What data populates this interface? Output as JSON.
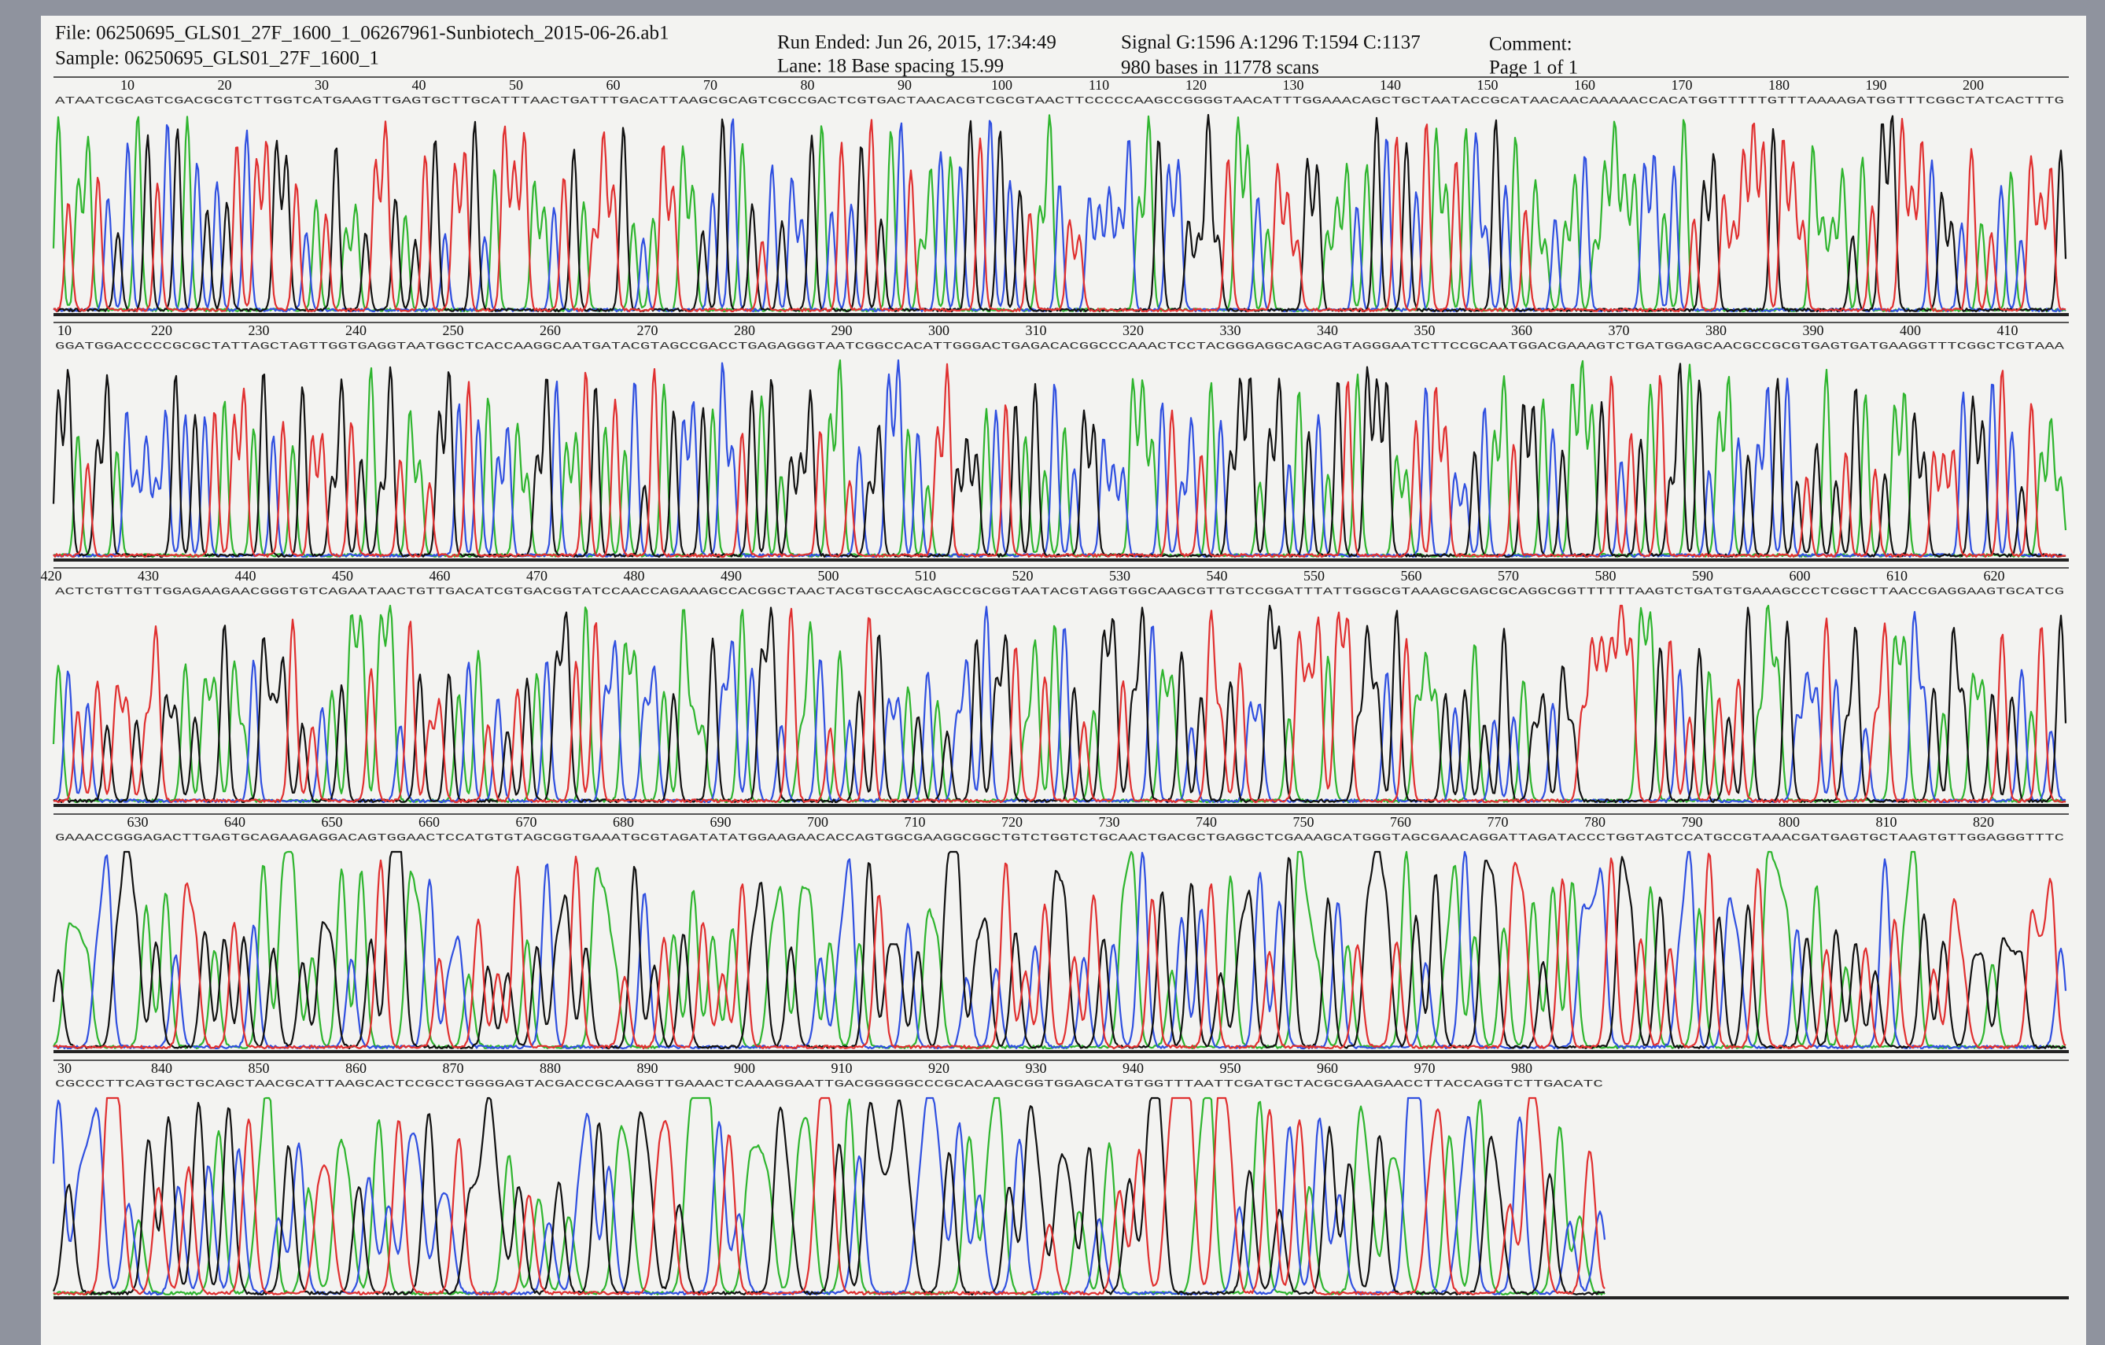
{
  "header": {
    "file": "File: 06250695_GLS01_27F_1600_1_06267961-Sunbiotech_2015-06-26.ab1",
    "sample": "Sample: 06250695_GLS01_27F_1600_1",
    "run_ended": "Run Ended: Jun 26, 2015, 17:34:49",
    "lane": "Lane: 18  Base spacing 15.99",
    "signal": "Signal G:1596 A:1296 T:1594 C:1137",
    "bases": "980 bases in 11778 scans",
    "comment": "Comment:",
    "page": "Page 1 of 1"
  },
  "panels": [
    {
      "ticks": [
        10,
        20,
        30,
        40,
        50,
        60,
        70,
        80,
        90,
        100,
        110,
        120,
        130,
        140,
        150,
        160,
        170,
        180,
        190,
        200
      ],
      "sequence": "ATAATCGCAGTCGACGCGTCTTGGTCATGAAGTTGAGTGCTTGCATTTAACTGATTTGACATTAAGCGCAGTCGCCGACTCGTGACTAACACGTCGCGTAACTTCCCCCAAGCCGGGGTAACATTTGGAAACAGCTGCTAATACCGCATAACAACAAAAACCACATGGTTTTTGTTTAAAAGATGGTTTCGGCTATCACTTTG"
    },
    {
      "ticks": [
        10,
        220,
        230,
        240,
        250,
        260,
        270,
        280,
        290,
        300,
        310,
        320,
        330,
        340,
        350,
        360,
        370,
        380,
        390,
        400,
        410
      ],
      "sequence": "GGATGGACCCCCGCGCTATTAGCTAGTTGGTGAGGTAATGGCTCACCAAGGCAATGATACGTAGCCGACCTGAGAGGGTAATCGGCCACATTGGGACTGAGACACGGCCCAAACTCCTACGGGAGGCAGCAGTAGGGAATCTTCCGCAATGGACGAAAGTCTGATGGAGCAACGCCGCGTGAGTGATGAAGGTTTCGGCTCGTAAA"
    },
    {
      "ticks": [
        420,
        430,
        440,
        450,
        460,
        470,
        480,
        490,
        500,
        510,
        520,
        530,
        540,
        550,
        560,
        570,
        580,
        590,
        600,
        610,
        620
      ],
      "sequence": "ACTCTGTTGTTGGAGAAGAACGGGTGTCAGAATAACTGTTGACATCGTGACGGTATCCAACCAGAAAGCCACGGCTAACTACGTGCCAGCAGCCGCGGTAATACGTAGGTGGCAAGCGTTGTCCGGATTTATTGGGCGTAAAGCGAGCGCAGGCGGTTTTTTAAGTCTGATGTGAAAGCCCTCGGCTTAACCGAGGAAGTGCATCG"
    },
    {
      "ticks": [
        630,
        640,
        650,
        660,
        670,
        680,
        690,
        700,
        710,
        720,
        730,
        740,
        750,
        760,
        770,
        780,
        790,
        800,
        810,
        820
      ],
      "sequence": "GAAACCGGGAGACTTGAGTGCAGAAGAGGACAGTGGAACTCCATGTGTAGCGGTGAAATGCGTAGATATATGGAAGAACACCAGTGGCGAAGGCGGCTGTCTGGTCTGCAACTGACGCTGAGGCTCGAAAGCATGGGTAGCGAACAGGATTAGATACCCTGGTAGTCCATGCCGTAAACGATGAGTGCTAAGTGTTGGAGGGTTTC"
    },
    {
      "ticks": [
        30,
        840,
        850,
        860,
        870,
        880,
        890,
        900,
        910,
        920,
        930,
        940,
        950,
        960,
        970,
        980
      ],
      "sequence": "CGCCCTTCAGTGCTGCAGCTAACGCATTAAGCACTCCGCCTGGGGAGTACGACCGCAAGGTTGAAACTCAAAGGAATTGACGGGGGCCCGCACAAGCGGTGGAGCATGTGGTTTAATTCGATGCTACGCGAAGAACCTTACCAGGTCTTGACATC"
    }
  ]
}
